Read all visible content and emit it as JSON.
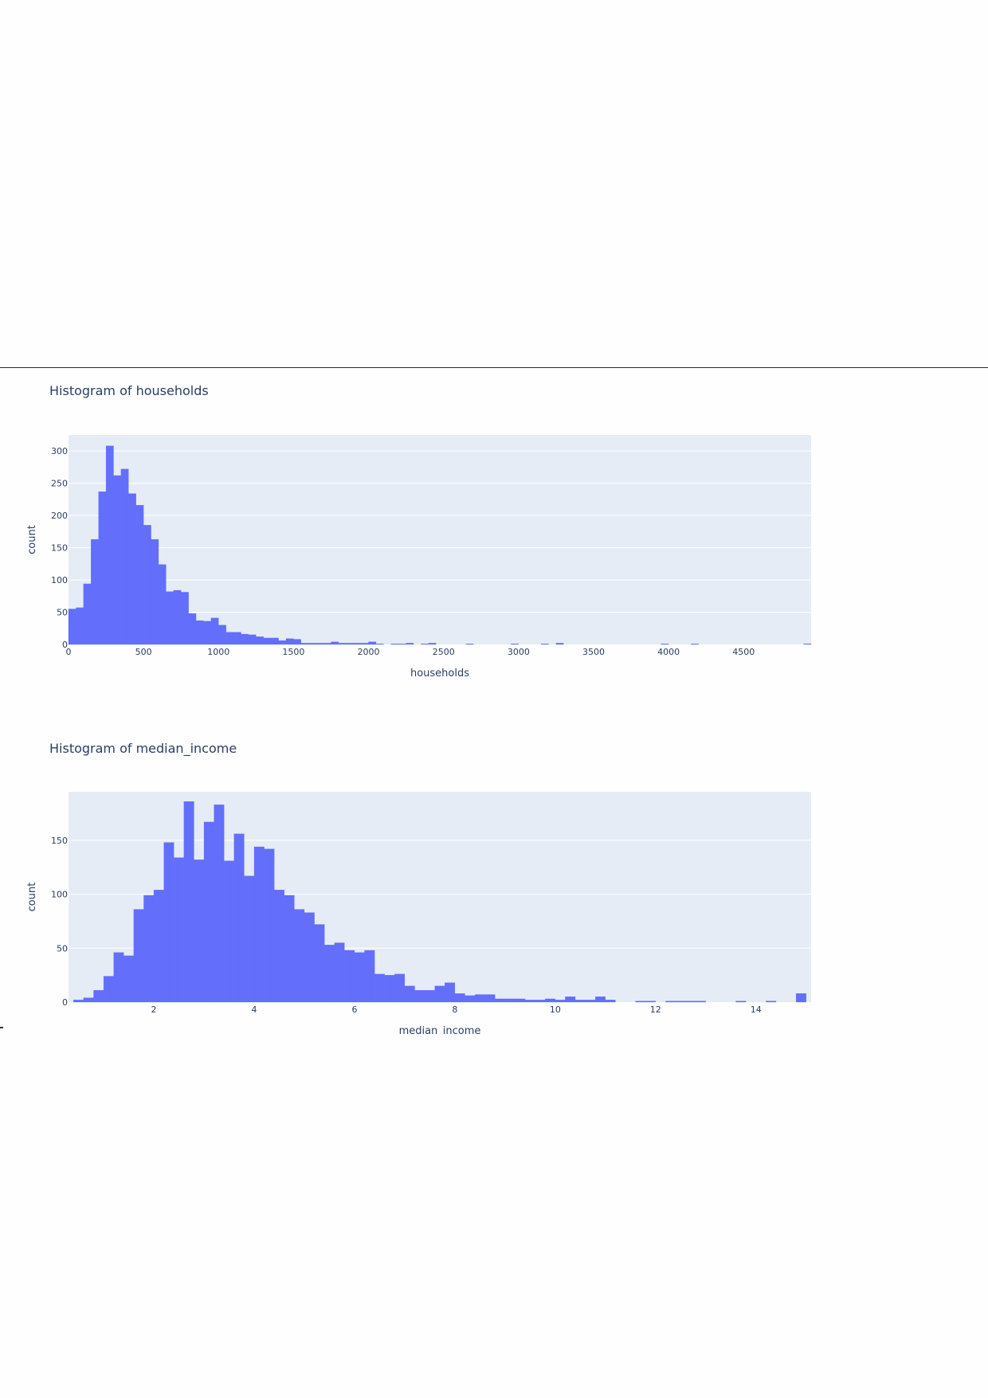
{
  "chart_data": [
    {
      "type": "bar",
      "title": "Histogram of households",
      "xlabel": "households",
      "ylabel": "count",
      "xlim": [
        0,
        4950
      ],
      "ylim": [
        0,
        325
      ],
      "xticks": [
        0,
        500,
        1000,
        1500,
        2000,
        2500,
        3000,
        3500,
        4000,
        4500
      ],
      "yticks": [
        0,
        50,
        100,
        150,
        200,
        250,
        300
      ],
      "bin_width": 50,
      "bin_starts": [
        0,
        50,
        100,
        150,
        200,
        250,
        300,
        350,
        400,
        450,
        500,
        550,
        600,
        650,
        700,
        750,
        800,
        850,
        900,
        950,
        1000,
        1050,
        1100,
        1150,
        1200,
        1250,
        1300,
        1350,
        1400,
        1450,
        1500,
        1550,
        1600,
        1650,
        1700,
        1750,
        1800,
        1850,
        1900,
        1950,
        2000,
        2050,
        2150,
        2200,
        2250,
        2350,
        2400,
        2650,
        2950,
        3150,
        3250,
        3950,
        4150,
        4900
      ],
      "values": [
        55,
        57,
        94,
        163,
        237,
        308,
        262,
        272,
        234,
        216,
        185,
        163,
        124,
        82,
        84,
        81,
        48,
        37,
        36,
        41,
        30,
        19,
        19,
        16,
        15,
        12,
        10,
        10,
        6,
        9,
        8,
        2,
        2,
        2,
        2,
        4,
        2,
        2,
        2,
        2,
        4,
        1,
        1,
        1,
        2,
        1,
        2,
        1,
        1,
        1,
        2,
        1,
        1,
        1
      ],
      "grid": true
    },
    {
      "type": "bar",
      "title": "Histogram of median_income",
      "xlabel": "median_income",
      "ylabel": "count",
      "xlim": [
        0.3,
        15.1
      ],
      "ylim": [
        0,
        195
      ],
      "xticks": [
        2,
        4,
        6,
        8,
        10,
        12,
        14
      ],
      "yticks": [
        0,
        50,
        100,
        150
      ],
      "bin_width": 0.2,
      "bin_starts": [
        0.4,
        0.6,
        0.8,
        1.0,
        1.2,
        1.4,
        1.6,
        1.8,
        2.0,
        2.2,
        2.4,
        2.6,
        2.8,
        3.0,
        3.2,
        3.4,
        3.6,
        3.8,
        4.0,
        4.2,
        4.4,
        4.6,
        4.8,
        5.0,
        5.2,
        5.4,
        5.6,
        5.8,
        6.0,
        6.2,
        6.4,
        6.6,
        6.8,
        7.0,
        7.2,
        7.4,
        7.6,
        7.8,
        8.0,
        8.2,
        8.4,
        8.6,
        8.8,
        9.0,
        9.2,
        9.4,
        9.6,
        9.8,
        10.0,
        10.2,
        10.4,
        10.6,
        10.8,
        11.0,
        11.6,
        11.8,
        12.2,
        12.4,
        12.6,
        12.8,
        13.6,
        14.2,
        14.8
      ],
      "values": [
        2,
        4,
        11,
        24,
        46,
        43,
        86,
        99,
        104,
        148,
        134,
        186,
        132,
        167,
        183,
        131,
        156,
        117,
        144,
        142,
        104,
        99,
        86,
        83,
        72,
        53,
        55,
        48,
        46,
        48,
        26,
        25,
        26,
        15,
        11,
        11,
        15,
        18,
        8,
        6,
        7,
        7,
        3,
        3,
        3,
        2,
        2,
        3,
        2,
        5,
        2,
        2,
        5,
        2,
        1,
        1,
        1,
        1,
        1,
        1,
        1,
        1,
        8
      ],
      "grid": true
    }
  ]
}
